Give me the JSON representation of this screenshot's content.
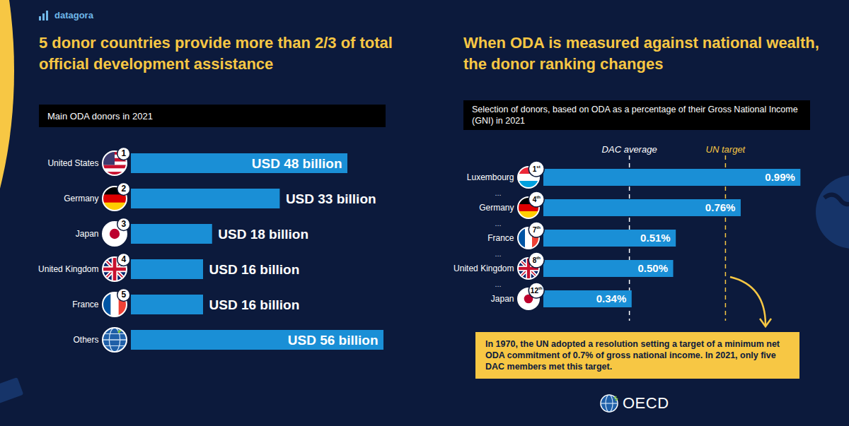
{
  "brand": "datagora",
  "source": "OECD",
  "chart_data": [
    {
      "type": "bar",
      "orientation": "horizontal",
      "title": "5 donor countries provide more than 2/3 of total official development assistance",
      "subtitle": "Main ODA donors in 2021",
      "categories": [
        "United States",
        "Germany",
        "Japan",
        "United Kingdom",
        "France",
        "Others"
      ],
      "ranks": [
        "1",
        "2",
        "3",
        "4",
        "5",
        null
      ],
      "values": [
        48,
        33,
        18,
        16,
        16,
        56
      ],
      "value_labels": [
        "USD 48 billion",
        "USD 33 billion",
        "USD 18 billion",
        "USD 16 billion",
        "USD 16 billion",
        "USD 56 billion"
      ],
      "color": "#1a8fd6",
      "xlim": [
        0,
        56
      ],
      "data_labels": true,
      "tick_labels": "y"
    },
    {
      "type": "bar",
      "orientation": "horizontal",
      "title": "When ODA is measured against national wealth, the donor ranking changes",
      "subtitle": "Selection of donors, based on ODA as a percentage of their Gross National Income (GNI) in 2021",
      "categories": [
        "Luxembourg",
        "Germany",
        "France",
        "United Kingdom",
        "Japan"
      ],
      "ranks": [
        "1st",
        "4th",
        "7th",
        "8th",
        "12th"
      ],
      "row_separator": "...",
      "values": [
        0.99,
        0.76,
        0.51,
        0.5,
        0.34
      ],
      "value_labels": [
        "0.99%",
        "0.76%",
        "0.51%",
        "0.50%",
        "0.34%"
      ],
      "color": "#1a8fd6",
      "xlim": [
        0,
        1
      ],
      "data_labels": true,
      "tick_labels": "y",
      "reference_lines": [
        {
          "label": "DAC average",
          "value": 0.33,
          "color": "#ffffff"
        },
        {
          "label": "UN target",
          "value": 0.7,
          "color": "#f7c744"
        }
      ],
      "annotation": "In 1970, the UN adopted a resolution setting a target of a minimum net ODA commitment of 0.7% of gross national income. In 2021, only five DAC members met this target."
    }
  ]
}
